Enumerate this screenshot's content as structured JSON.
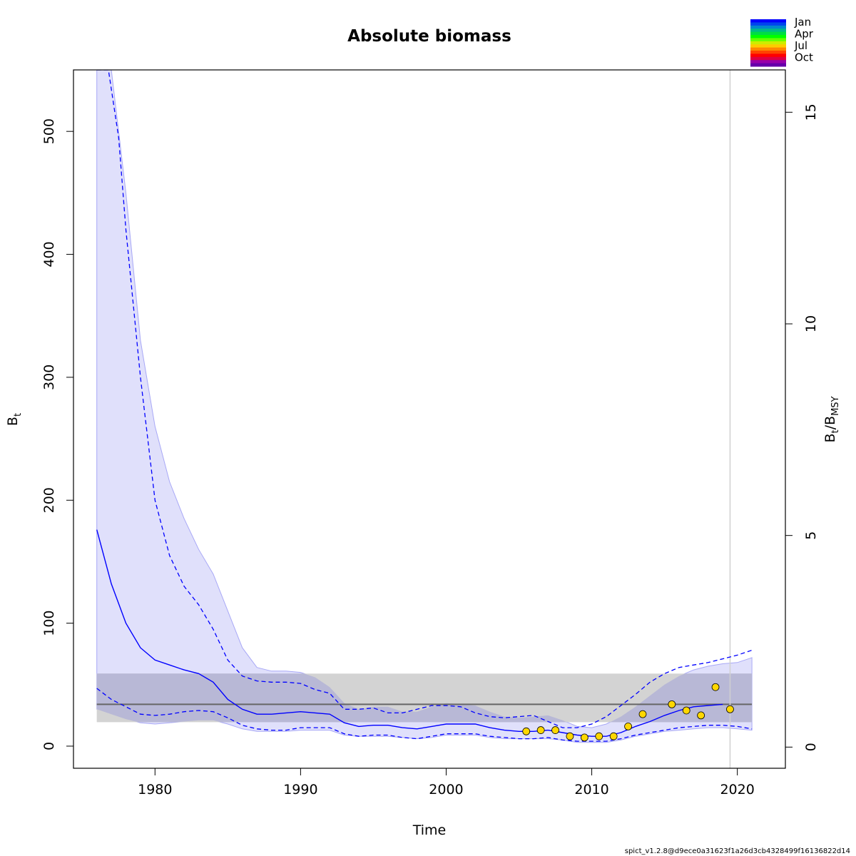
{
  "chart_data": {
    "type": "line",
    "title": "Absolute biomass",
    "xlabel": "Time",
    "ylabel": {
      "main": "B",
      "sub": "t"
    },
    "ylabel_right": {
      "main": "B",
      "sub1": "t",
      "sep": "/B",
      "sub2": "MSY"
    },
    "xlim": [
      1974.4,
      2023.3
    ],
    "ylim": [
      -18,
      550
    ],
    "ylim_right": [
      -0.5,
      16
    ],
    "x_ticks": [
      1980,
      1990,
      2000,
      2010,
      2020
    ],
    "x_tick_labels": [
      "1980",
      "1990",
      "2000",
      "2010",
      "2020"
    ],
    "y_ticks": [
      0,
      100,
      200,
      300,
      400,
      500
    ],
    "y_tick_labels": [
      "0",
      "100",
      "200",
      "300",
      "400",
      "500"
    ],
    "y_right_ticks": [
      0,
      5,
      10,
      15
    ],
    "y_right_tick_labels": [
      "0",
      "5",
      "10",
      "15"
    ],
    "grid": false,
    "legend": {
      "placement": "top-right",
      "labels": [
        "Jan",
        "Apr",
        "Jul",
        "Oct"
      ],
      "colors": [
        "#0000ff",
        "#0044ee",
        "#0088cc",
        "#00bb88",
        "#00dd44",
        "#00ff00",
        "#66ff00",
        "#ccee00",
        "#ffcc00",
        "#ff8800",
        "#ff4400",
        "#ff0000",
        "#dd0044",
        "#9900aa",
        "#6600aa"
      ]
    },
    "bmsy": 34,
    "bmsy_ci": [
      19.5,
      59
    ],
    "vertical_line_x": 2019.5,
    "estimate": {
      "x": [
        1976,
        1977,
        1978,
        1979,
        1980,
        1981,
        1982,
        1983,
        1984,
        1985,
        1986,
        1987,
        1988,
        1989,
        1990,
        1991,
        1992,
        1993,
        1994,
        1995,
        1996,
        1997,
        1998,
        1999,
        2000,
        2001,
        2002,
        2003,
        2004,
        2005,
        2006,
        2007,
        2008,
        2009,
        2010,
        2011,
        2012,
        2013,
        2014,
        2015,
        2016,
        2017,
        2018,
        2019
      ],
      "y": [
        176,
        132,
        100,
        80,
        70,
        66,
        62,
        59,
        52,
        38,
        30,
        26,
        26,
        27,
        28,
        27,
        26,
        19,
        16,
        17,
        17,
        15,
        14,
        16,
        18,
        18,
        18,
        15,
        13,
        12,
        12,
        13,
        11,
        9,
        8,
        8,
        11,
        16,
        20,
        25,
        29,
        32,
        33,
        34
      ]
    },
    "estimate_ci_upper": {
      "x": [
        1976,
        1976.8,
        1977.5,
        1978,
        1979,
        1980,
        1981,
        1982,
        1983,
        1984,
        1985,
        1986,
        1987,
        1988,
        1989,
        1990,
        1991,
        1992,
        1993,
        1994,
        1995,
        1996,
        1997,
        1998,
        1999,
        2000,
        2001,
        2002,
        2003,
        2004,
        2005,
        2006,
        2007,
        2008,
        2009,
        2010,
        2011,
        2012,
        2013,
        2014,
        2015,
        2016,
        2017,
        2018,
        2019,
        2020,
        2021
      ],
      "y": [
        550,
        550,
        495,
        420,
        300,
        200,
        155,
        130,
        115,
        95,
        70,
        57,
        53,
        52,
        52,
        51,
        46,
        43,
        30,
        30,
        31,
        27,
        27,
        30,
        33,
        33,
        32,
        27,
        24,
        23,
        24,
        25,
        20,
        15,
        15,
        18,
        24,
        33,
        42,
        52,
        59,
        64,
        66,
        68,
        71,
        74,
        78
      ]
    },
    "estimate_ci_lower": {
      "x": [
        1976,
        1977,
        1978,
        1979,
        1980,
        1981,
        1982,
        1983,
        1984,
        1985,
        1986,
        1987,
        1988,
        1989,
        1990,
        1991,
        1992,
        1993,
        1994,
        1995,
        1996,
        1997,
        1998,
        1999,
        2000,
        2001,
        2002,
        2003,
        2004,
        2005,
        2006,
        2007,
        2008,
        2009,
        2010,
        2011,
        2012,
        2013,
        2014,
        2015,
        2016,
        2017,
        2018,
        2019,
        2020,
        2021
      ],
      "y": [
        47,
        38,
        32,
        26,
        25,
        26,
        28,
        29,
        28,
        23,
        17,
        14,
        13,
        13,
        15,
        15,
        15,
        10,
        8,
        9,
        9,
        7,
        6,
        8,
        10,
        10,
        10,
        8,
        7,
        6,
        6,
        7,
        5,
        4,
        4,
        4,
        6,
        9,
        11,
        13,
        15,
        16,
        17,
        17,
        16,
        14
      ]
    },
    "band_upper": {
      "x": [
        1976,
        1977,
        1978,
        1979,
        1980,
        1981,
        1982,
        1983,
        1984,
        1985,
        1986,
        1987,
        1988,
        1989,
        1990,
        1991,
        1992,
        1993,
        1994,
        1995,
        1996,
        1997,
        1998,
        1999,
        2000,
        2001,
        2002,
        2003,
        2004,
        2005,
        2006,
        2007,
        2008,
        2009,
        2010,
        2011,
        2012,
        2013,
        2014,
        2015,
        2016,
        2017,
        2018,
        2019,
        2020,
        2021
      ],
      "y": [
        550,
        550,
        450,
        330,
        260,
        215,
        185,
        160,
        140,
        110,
        80,
        64,
        61,
        61,
        60,
        56,
        48,
        35,
        30,
        32,
        32,
        28,
        28,
        32,
        35,
        34,
        33,
        28,
        24,
        23,
        24,
        25,
        21,
        16,
        15,
        18,
        24,
        32,
        41,
        50,
        57,
        62,
        65,
        67,
        68,
        72
      ]
    },
    "band_lower": {
      "x": [
        1976,
        1977,
        1978,
        1979,
        1980,
        1981,
        1982,
        1983,
        1984,
        1985,
        1986,
        1987,
        1988,
        1989,
        1990,
        1991,
        1992,
        1993,
        1994,
        1995,
        1996,
        1997,
        1998,
        1999,
        2000,
        2001,
        2002,
        2003,
        2004,
        2005,
        2006,
        2007,
        2008,
        2009,
        2010,
        2011,
        2012,
        2013,
        2014,
        2015,
        2016,
        2017,
        2018,
        2019,
        2020,
        2021
      ],
      "y": [
        30,
        26,
        22,
        19,
        18,
        19,
        20,
        21,
        21,
        18,
        14,
        12,
        12,
        12,
        13,
        13,
        13,
        9,
        8,
        8,
        8,
        7,
        6,
        7,
        9,
        9,
        9,
        7,
        6,
        6,
        6,
        6,
        5,
        3,
        3,
        3,
        5,
        8,
        10,
        12,
        13,
        14,
        15,
        15,
        14,
        13
      ]
    },
    "points": {
      "x": [
        2005.5,
        2006.5,
        2007.5,
        2008.5,
        2009.5,
        2010.5,
        2011.5,
        2012.5,
        2013.5,
        2015.5,
        2016.5,
        2017.5,
        2018.5,
        2019.5
      ],
      "y": [
        12,
        13,
        13,
        8,
        7,
        8,
        8,
        16,
        26,
        34,
        29,
        25,
        48,
        30
      ]
    },
    "colors": {
      "line": "#0000ff",
      "band_fill": "#e0e0fb",
      "band_stroke": "#a8a8f6",
      "bmsy_fill": "#d3d3d3",
      "overlap_fill": "#b8b8d6",
      "bmsy_line": "#666666",
      "point_fill": "#ffd700",
      "vline": "#d0d0d0"
    }
  },
  "footer": "spict_v1.2.8@d9ece0a31623f1a26d3cb4328499f16136822d14"
}
